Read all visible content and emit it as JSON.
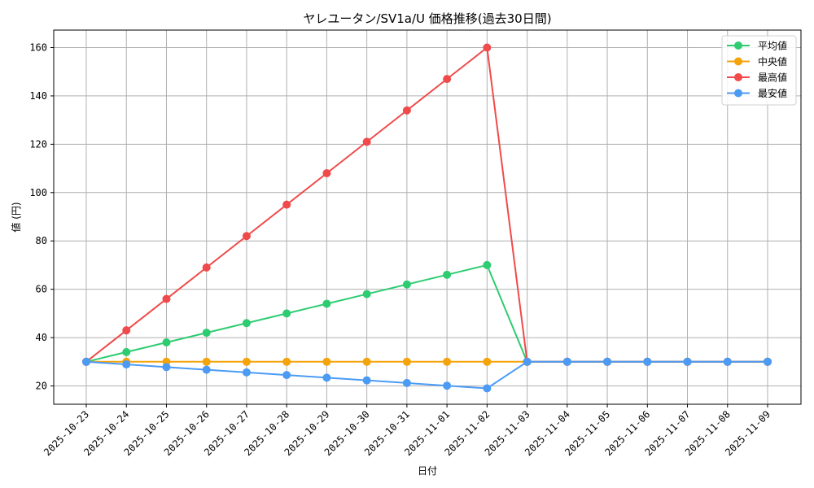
{
  "chart_data": {
    "type": "line",
    "title": "ヤレユータン/SV1a/U 価格推移(過去30日間)",
    "xlabel": "日付",
    "ylabel": "値 (円)",
    "ylim": [
      12.5,
      167
    ],
    "yticks": [
      20,
      40,
      60,
      80,
      100,
      120,
      140,
      160
    ],
    "grid": true,
    "legend_position": "upper right",
    "x": [
      "2025-10-23",
      "2025-10-24",
      "2025-10-25",
      "2025-10-26",
      "2025-10-27",
      "2025-10-28",
      "2025-10-29",
      "2025-10-30",
      "2025-10-31",
      "2025-11-01",
      "2025-11-02",
      "2025-11-03",
      "2025-11-04",
      "2025-11-05",
      "2025-11-06",
      "2025-11-07",
      "2025-11-08",
      "2025-11-09"
    ],
    "series": [
      {
        "name": "平均値",
        "color": "#2ecc71",
        "values": [
          30,
          34,
          38,
          42,
          46,
          50,
          54,
          58,
          62,
          66,
          70,
          30,
          30,
          30,
          30,
          30,
          30,
          30
        ]
      },
      {
        "name": "中央値",
        "color": "#f5a30a",
        "values": [
          30,
          30,
          30,
          30,
          30,
          30,
          30,
          30,
          30,
          30,
          30,
          30,
          30,
          30,
          30,
          30,
          30,
          30
        ]
      },
      {
        "name": "最高値",
        "color": "#f04a4a",
        "values": [
          30,
          43,
          56,
          69,
          82,
          95,
          108,
          121,
          134,
          147,
          160,
          30,
          30,
          30,
          30,
          30,
          30,
          30
        ]
      },
      {
        "name": "最安値",
        "color": "#4b9bf5",
        "values": [
          30,
          28.9,
          27.8,
          26.7,
          25.6,
          24.5,
          23.4,
          22.3,
          21.2,
          20.1,
          19,
          30,
          30,
          30,
          30,
          30,
          30,
          30
        ]
      }
    ]
  }
}
